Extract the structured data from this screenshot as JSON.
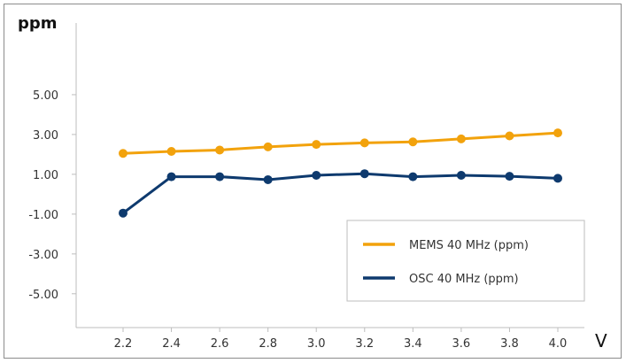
{
  "chart_data": {
    "type": "line",
    "ylabel": "ppm",
    "xlabel": "V",
    "x": [
      2.2,
      2.4,
      2.6,
      2.8,
      3.0,
      3.2,
      3.4,
      3.6,
      3.8,
      4.0
    ],
    "x_tick_labels": [
      "2.2",
      "2.4",
      "2.6",
      "2.8",
      "3.0",
      "3.2",
      "3.4",
      "3.6",
      "3.8",
      "4.0"
    ],
    "y_tick_labels": [
      "5.00",
      "3.00",
      "1.00",
      "-1.00",
      "-3.00",
      "-5.00"
    ],
    "y_ticks": [
      5,
      3,
      1,
      -1,
      -3,
      -5
    ],
    "ylim": [
      -6.7,
      8.6
    ],
    "grid": false,
    "legend_position": "bottom-right",
    "series": [
      {
        "name": "MEMS 40 MHz (ppm)",
        "color": "#f2a20c",
        "values": [
          2.05,
          2.15,
          2.22,
          2.38,
          2.5,
          2.58,
          2.63,
          2.78,
          2.93,
          3.08
        ]
      },
      {
        "name": "OSC 40 MHz (ppm)",
        "color": "#0e3a6e",
        "values": [
          -0.95,
          0.88,
          0.88,
          0.73,
          0.95,
          1.03,
          0.88,
          0.95,
          0.9,
          0.8
        ]
      }
    ]
  }
}
